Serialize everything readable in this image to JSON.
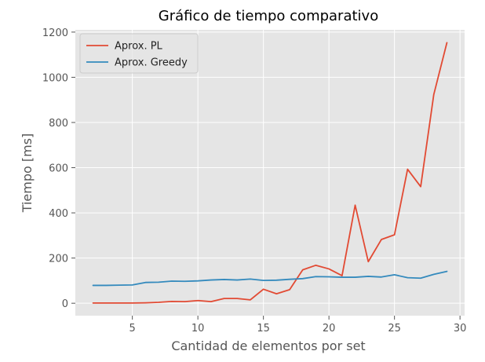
{
  "chart_data": {
    "type": "line",
    "title": "Gráfico de tiempo comparativo",
    "xlabel": "Cantidad de elementos por set",
    "ylabel": "Tiempo [ms]",
    "xlim": [
      0.65,
      30.35
    ],
    "ylim": [
      -55,
      1210
    ],
    "xticks": [
      5,
      10,
      15,
      20,
      25,
      30
    ],
    "yticks": [
      0,
      200,
      400,
      600,
      800,
      1000,
      1200
    ],
    "grid": true,
    "legend_position": "top-left",
    "style": {
      "plot_background": "#e5e5e5",
      "grid_color": "#ffffff",
      "tick_color": "#555555"
    },
    "x": [
      2,
      3,
      4,
      5,
      6,
      7,
      8,
      9,
      10,
      11,
      12,
      13,
      14,
      15,
      16,
      17,
      18,
      19,
      20,
      21,
      22,
      23,
      24,
      25,
      26,
      27,
      28,
      29
    ],
    "series": [
      {
        "name": "Aprox. PL",
        "color": "#e24a33",
        "values": [
          1,
          1,
          1,
          1,
          2,
          4,
          8,
          7,
          12,
          7,
          21,
          21,
          15,
          62,
          42,
          60,
          148,
          168,
          152,
          122,
          434,
          184,
          282,
          303,
          593,
          516,
          924,
          1153
        ]
      },
      {
        "name": "Aprox. Greedy",
        "color": "#348abd",
        "values": [
          79,
          79,
          80,
          81,
          92,
          93,
          98,
          97,
          99,
          103,
          105,
          103,
          107,
          101,
          102,
          106,
          109,
          118,
          117,
          115,
          115,
          119,
          116,
          126,
          113,
          111,
          128,
          141
        ]
      }
    ]
  }
}
